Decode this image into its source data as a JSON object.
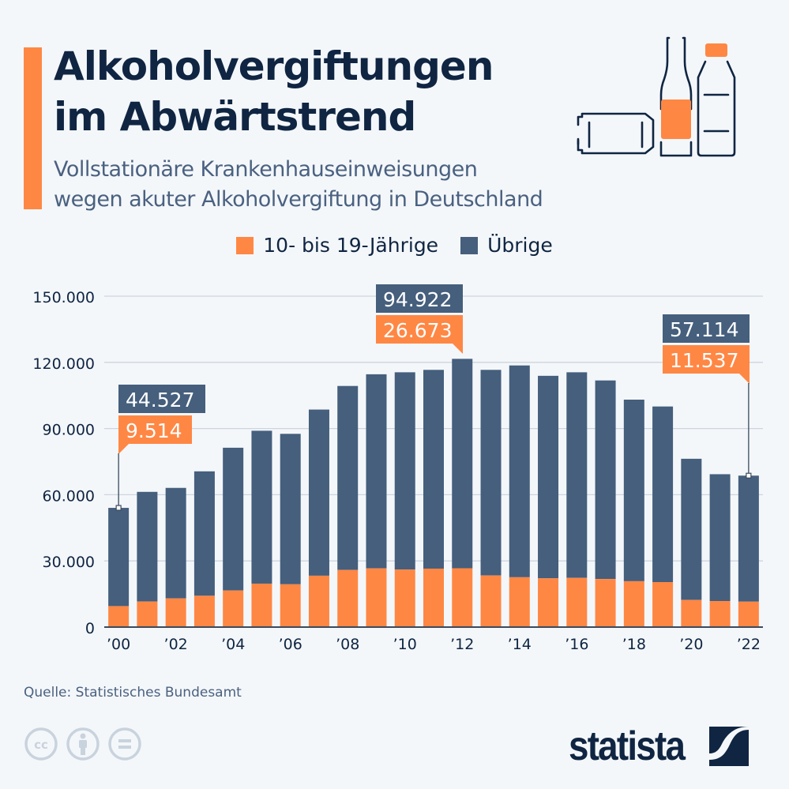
{
  "header": {
    "title_line1": "Alkoholvergiftungen",
    "title_line2": "im Abwärtstrend",
    "subtitle_line1": "Vollstationäre Krankenhauseinweisungen",
    "subtitle_line2": "wegen akuter Alkoholvergiftung in Deutschland",
    "illustration": "bottles-icon"
  },
  "colors": {
    "accent": "#ff8744",
    "series_youth": "#ff8744",
    "series_other": "#455f7d",
    "text_dark": "#0f2542",
    "text_muted": "#4a6180",
    "grid": "#cdd5de",
    "background": "#f4f7fa"
  },
  "legend": [
    {
      "label": "10- bis 19-Jährige",
      "color": "#ff8744"
    },
    {
      "label": "Übrige",
      "color": "#455f7d"
    }
  ],
  "chart_data": {
    "type": "bar",
    "stacked": true,
    "title": "Alkoholvergiftungen im Abwärtstrend",
    "subtitle": "Vollstationäre Krankenhauseinweisungen wegen akuter Alkoholvergiftung in Deutschland",
    "xlabel": "",
    "ylabel": "",
    "ylim": [
      0,
      150000
    ],
    "yticks": [
      0,
      30000,
      60000,
      90000,
      120000,
      150000
    ],
    "ytick_labels": [
      "0",
      "30.000",
      "60.000",
      "90.000",
      "120.000",
      "150.000"
    ],
    "grid": true,
    "legend_position": "top-center",
    "categories": [
      "2000",
      "2001",
      "2002",
      "2003",
      "2004",
      "2005",
      "2006",
      "2007",
      "2008",
      "2009",
      "2010",
      "2011",
      "2012",
      "2013",
      "2014",
      "2015",
      "2016",
      "2017",
      "2018",
      "2019",
      "2020",
      "2021",
      "2022"
    ],
    "xtick_labels": [
      "’00",
      "",
      "’02",
      "",
      "’04",
      "",
      "’06",
      "",
      "’08",
      "",
      "’10",
      "",
      "’12",
      "",
      "’14",
      "",
      "’16",
      "",
      "’18",
      "",
      "’20",
      "",
      "’22"
    ],
    "series": [
      {
        "name": "10- bis 19-Jährige",
        "color": "#ff8744",
        "values": [
          9514,
          11600,
          13000,
          14200,
          16600,
          19700,
          19400,
          23300,
          25900,
          26600,
          26100,
          26500,
          26673,
          23400,
          22600,
          22100,
          22300,
          21800,
          20800,
          20400,
          12300,
          11800,
          11537
        ]
      },
      {
        "name": "Übrige",
        "color": "#455f7d",
        "values": [
          44527,
          49700,
          50100,
          56400,
          64700,
          69300,
          68200,
          75300,
          83400,
          88000,
          89400,
          90100,
          94922,
          93200,
          96000,
          91800,
          93200,
          90000,
          82300,
          79600,
          64000,
          57500,
          57114
        ]
      }
    ],
    "annotations": [
      {
        "category": "2000",
        "other": "44.527",
        "youth": "9.514"
      },
      {
        "category": "2012",
        "other": "94.922",
        "youth": "26.673"
      },
      {
        "category": "2022",
        "other": "57.114",
        "youth": "11.537"
      }
    ]
  },
  "footer": {
    "source": "Quelle: Statistisches Bundesamt",
    "license_icons": [
      "cc-icon",
      "attribution-icon",
      "no-derivatives-icon"
    ],
    "cc_label": "cc",
    "brand": "statista"
  }
}
